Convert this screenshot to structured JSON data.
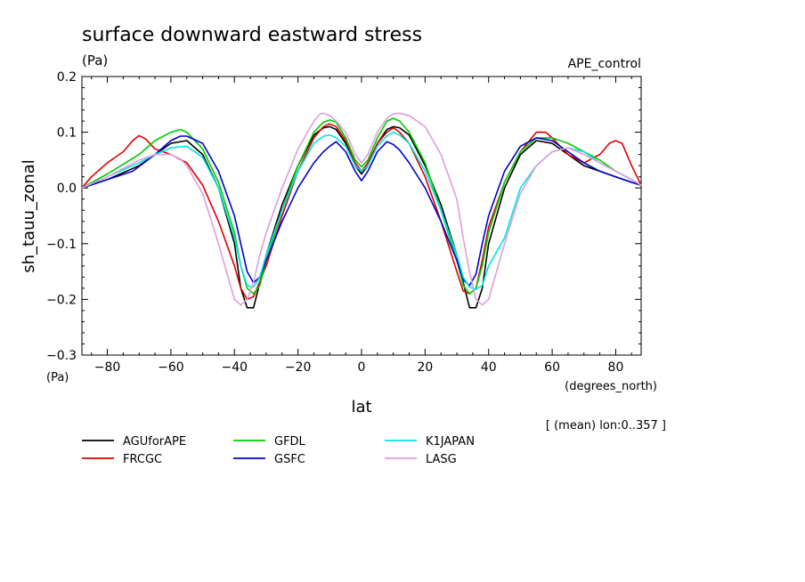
{
  "chart_data": {
    "type": "line",
    "title": "surface downward eastward stress",
    "units_label": "(Pa)",
    "experiment": "APE_control",
    "ylabel": "sh_tauu_zonal",
    "xlabel": "lat",
    "x_units": "(degrees_north)",
    "y_units_bottom": "(Pa)",
    "note": "[ (mean) lon:0..357 ]",
    "xlim": [
      -88,
      88
    ],
    "ylim": [
      -0.3,
      0.2
    ],
    "x_ticks": [
      -80,
      -60,
      -40,
      -20,
      0,
      20,
      40,
      60,
      80
    ],
    "x_tick_labels": [
      "−80",
      "−60",
      "−40",
      "−20",
      "0",
      "20",
      "40",
      "60",
      "80"
    ],
    "y_ticks": [
      -0.3,
      -0.2,
      -0.1,
      0.0,
      0.1,
      0.2
    ],
    "y_tick_labels": [
      "−0.3",
      "−0.2",
      "−0.1",
      "0.0",
      "0.1",
      "0.2"
    ],
    "series": [
      {
        "name": "AGUforAPE",
        "color": "#000000",
        "x": [
          -88,
          -80,
          -70,
          -65,
          -60,
          -55,
          -50,
          -45,
          -40,
          -38,
          -36,
          -34,
          -32,
          -30,
          -25,
          -20,
          -15,
          -12,
          -10,
          -8,
          -5,
          -2,
          0,
          2,
          5,
          8,
          10,
          12,
          15,
          20,
          25,
          30,
          32,
          34,
          36,
          38,
          40,
          45,
          50,
          55,
          60,
          65,
          70,
          75,
          80,
          85,
          88
        ],
        "y": [
          0.0,
          0.015,
          0.04,
          0.06,
          0.08,
          0.085,
          0.06,
          0.0,
          -0.1,
          -0.18,
          -0.215,
          -0.215,
          -0.17,
          -0.12,
          -0.03,
          0.04,
          0.095,
          0.108,
          0.11,
          0.105,
          0.08,
          0.04,
          0.025,
          0.04,
          0.08,
          0.105,
          0.11,
          0.108,
          0.095,
          0.04,
          -0.03,
          -0.12,
          -0.17,
          -0.215,
          -0.215,
          -0.18,
          -0.1,
          0.0,
          0.06,
          0.085,
          0.08,
          0.06,
          0.04,
          0.03,
          0.02,
          0.01,
          0.005
        ]
      },
      {
        "name": "FRCGC",
        "color": "#dd0000",
        "x": [
          -88,
          -85,
          -80,
          -75,
          -72,
          -70,
          -68,
          -65,
          -60,
          -55,
          -50,
          -45,
          -40,
          -38,
          -36,
          -34,
          -30,
          -25,
          -20,
          -15,
          -12,
          -10,
          -8,
          -5,
          -2,
          0,
          2,
          5,
          8,
          10,
          12,
          15,
          20,
          25,
          30,
          32,
          34,
          36,
          38,
          40,
          45,
          50,
          55,
          58,
          60,
          65,
          70,
          75,
          78,
          80,
          82,
          85,
          88
        ],
        "y": [
          0.0,
          0.02,
          0.045,
          0.065,
          0.085,
          0.094,
          0.088,
          0.07,
          0.06,
          0.045,
          0.005,
          -0.06,
          -0.14,
          -0.18,
          -0.2,
          -0.195,
          -0.14,
          -0.05,
          0.03,
          0.09,
          0.11,
          0.115,
          0.11,
          0.085,
          0.045,
          0.03,
          0.045,
          0.08,
          0.1,
          0.108,
          0.1,
          0.08,
          0.02,
          -0.06,
          -0.15,
          -0.185,
          -0.19,
          -0.18,
          -0.13,
          -0.07,
          0.01,
          0.065,
          0.1,
          0.1,
          0.09,
          0.06,
          0.045,
          0.06,
          0.08,
          0.085,
          0.08,
          0.04,
          0.005
        ]
      },
      {
        "name": "GFDL",
        "color": "#00cc00",
        "x": [
          -88,
          -80,
          -70,
          -65,
          -60,
          -57,
          -55,
          -50,
          -45,
          -40,
          -38,
          -36,
          -34,
          -32,
          -30,
          -25,
          -20,
          -15,
          -12,
          -10,
          -8,
          -5,
          -2,
          0,
          2,
          5,
          8,
          10,
          12,
          15,
          20,
          25,
          30,
          32,
          34,
          36,
          38,
          40,
          45,
          50,
          55,
          60,
          65,
          70,
          75,
          80,
          85,
          88
        ],
        "y": [
          0.0,
          0.025,
          0.06,
          0.085,
          0.1,
          0.105,
          0.1,
          0.07,
          0.01,
          -0.08,
          -0.14,
          -0.18,
          -0.19,
          -0.175,
          -0.13,
          -0.04,
          0.04,
          0.1,
          0.118,
          0.122,
          0.118,
          0.09,
          0.05,
          0.038,
          0.05,
          0.09,
          0.12,
          0.125,
          0.12,
          0.1,
          0.045,
          -0.04,
          -0.13,
          -0.175,
          -0.19,
          -0.18,
          -0.14,
          -0.08,
          0.01,
          0.065,
          0.09,
          0.09,
          0.08,
          0.065,
          0.05,
          0.03,
          0.015,
          0.005
        ]
      },
      {
        "name": "GSFC",
        "color": "#0000cc",
        "x": [
          -88,
          -80,
          -72,
          -65,
          -60,
          -57,
          -55,
          -50,
          -45,
          -40,
          -38,
          -36,
          -34,
          -32,
          -30,
          -25,
          -20,
          -15,
          -12,
          -10,
          -8,
          -5,
          -2,
          0,
          2,
          5,
          8,
          10,
          12,
          15,
          20,
          25,
          30,
          32,
          34,
          36,
          38,
          40,
          45,
          50,
          55,
          60,
          65,
          70,
          75,
          80,
          85,
          88
        ],
        "y": [
          0.0,
          0.015,
          0.03,
          0.06,
          0.085,
          0.093,
          0.093,
          0.08,
          0.03,
          -0.05,
          -0.1,
          -0.15,
          -0.17,
          -0.16,
          -0.13,
          -0.06,
          0.0,
          0.045,
          0.065,
          0.075,
          0.083,
          0.065,
          0.03,
          0.013,
          0.03,
          0.065,
          0.083,
          0.078,
          0.068,
          0.045,
          0.0,
          -0.06,
          -0.13,
          -0.165,
          -0.175,
          -0.155,
          -0.1,
          -0.05,
          0.03,
          0.075,
          0.09,
          0.085,
          0.065,
          0.045,
          0.03,
          0.02,
          0.01,
          0.005
        ]
      },
      {
        "name": "K1JAPAN",
        "color": "#00e5e5",
        "x": [
          -88,
          -80,
          -70,
          -65,
          -60,
          -55,
          -50,
          -45,
          -40,
          -38,
          -36,
          -34,
          -32,
          -30,
          -25,
          -20,
          -15,
          -12,
          -10,
          -8,
          -5,
          -2,
          0,
          2,
          5,
          8,
          10,
          12,
          15,
          20,
          25,
          30,
          32,
          34,
          36,
          38,
          40,
          45,
          50,
          55,
          60,
          65,
          70,
          75,
          80,
          85,
          88
        ],
        "y": [
          0.0,
          0.02,
          0.045,
          0.06,
          0.072,
          0.075,
          0.055,
          0.0,
          -0.09,
          -0.14,
          -0.175,
          -0.178,
          -0.16,
          -0.12,
          -0.04,
          0.03,
          0.08,
          0.093,
          0.095,
          0.09,
          0.075,
          0.04,
          0.03,
          0.04,
          0.075,
          0.093,
          0.1,
          0.095,
          0.08,
          0.03,
          -0.04,
          -0.12,
          -0.16,
          -0.178,
          -0.182,
          -0.175,
          -0.14,
          -0.09,
          0.0,
          0.04,
          0.065,
          0.072,
          0.065,
          0.045,
          0.03,
          0.015,
          0.005
        ]
      },
      {
        "name": "LASG",
        "color": "#dd9edd",
        "x": [
          -88,
          -80,
          -70,
          -65,
          -60,
          -57,
          -55,
          -50,
          -45,
          -42,
          -40,
          -38,
          -36,
          -34,
          -32,
          -30,
          -25,
          -20,
          -15,
          -13,
          -12,
          -10,
          -8,
          -5,
          -2,
          0,
          2,
          5,
          8,
          10,
          12,
          15,
          20,
          25,
          30,
          32,
          34,
          36,
          38,
          40,
          45,
          50,
          55,
          60,
          65,
          70,
          75,
          80,
          85,
          88
        ],
        "y": [
          0.0,
          0.02,
          0.05,
          0.06,
          0.06,
          0.052,
          0.04,
          -0.01,
          -0.1,
          -0.16,
          -0.2,
          -0.21,
          -0.2,
          -0.17,
          -0.12,
          -0.08,
          0.0,
          0.07,
          0.12,
          0.133,
          0.134,
          0.13,
          0.12,
          0.1,
          0.06,
          0.045,
          0.06,
          0.1,
          0.125,
          0.133,
          0.134,
          0.13,
          0.11,
          0.06,
          -0.02,
          -0.09,
          -0.15,
          -0.2,
          -0.21,
          -0.2,
          -0.1,
          -0.01,
          0.04,
          0.065,
          0.072,
          0.06,
          0.045,
          0.03,
          0.015,
          0.005
        ]
      }
    ]
  }
}
